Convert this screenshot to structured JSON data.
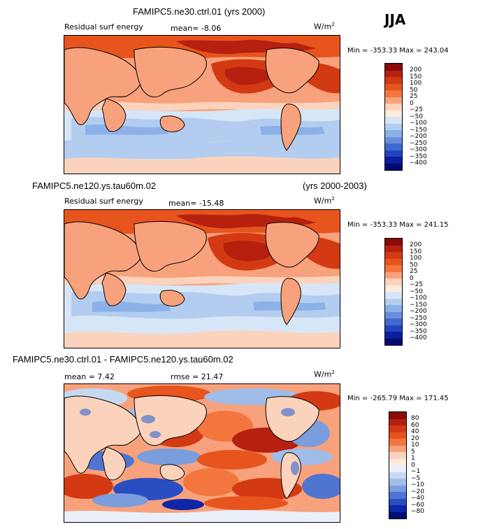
{
  "season_label": "JJA",
  "panels": [
    {
      "title_left": "FAMIPC5.ne30.ctrl.01 (yrs 2000)",
      "title_right": "",
      "sub_left": "Residual surf energy",
      "sub_mid": "mean=   -8.06",
      "unit": "W/m",
      "unit_sup": "2",
      "minmax": "Min = -353.33  Max = 243.04",
      "colorbar_labels": [
        "200",
        "150",
        "100",
        "50",
        "25",
        "0",
        "−25",
        "−50",
        "−100",
        "−150",
        "−200",
        "−250",
        "−300",
        "−350",
        "−400"
      ]
    },
    {
      "title_left": "FAMIPC5.ne120.ys.tau60m.02",
      "title_right": "(yrs 2000-2003)",
      "sub_left": "Residual surf energy",
      "sub_mid": "mean=  -15.48",
      "unit": "W/m",
      "unit_sup": "2",
      "minmax": "Min = -353.33  Max = 241.15",
      "colorbar_labels": [
        "200",
        "150",
        "100",
        "50",
        "25",
        "0",
        "−25",
        "−50",
        "−100",
        "−150",
        "−200",
        "−250",
        "−300",
        "−350",
        "−400"
      ]
    },
    {
      "title_left": "FAMIPC5.ne30.ctrl.01 - FAMIPC5.ne120.ys.tau60m.02",
      "title_right": "",
      "sub_left": "mean =     7.42",
      "sub_mid": "rmse =   21.47",
      "unit": "W/m",
      "unit_sup": "2",
      "minmax": "Min = -265.79  Max = 171.45",
      "colorbar_labels": [
        "80",
        "60",
        "40",
        "20",
        "10",
        "5",
        "1",
        "0",
        "−1",
        "−5",
        "−10",
        "−20",
        "−40",
        "−60",
        "−80"
      ]
    }
  ],
  "colors": {
    "abs_scale": [
      "#8b0a0a",
      "#b5200f",
      "#d33a14",
      "#e8541e",
      "#f2763d",
      "#f7a27c",
      "#fbd3bd",
      "#fdebdc",
      "#d7e6f7",
      "#b3cdf0",
      "#8cb0e8",
      "#6790dc",
      "#406ad0",
      "#2243c0",
      "#0a1e9e",
      "#02096f"
    ],
    "diff_scale": [
      "#8b0a0a",
      "#b5200f",
      "#d33a14",
      "#e8541e",
      "#f2763d",
      "#f7a27c",
      "#fbd3bd",
      "#fdebdc",
      "#e9f0fa",
      "#c6d9f3",
      "#a0bde9",
      "#7a9ddd",
      "#4f75d1",
      "#2a4dc2",
      "#0e26a8",
      "#040c72"
    ]
  }
}
